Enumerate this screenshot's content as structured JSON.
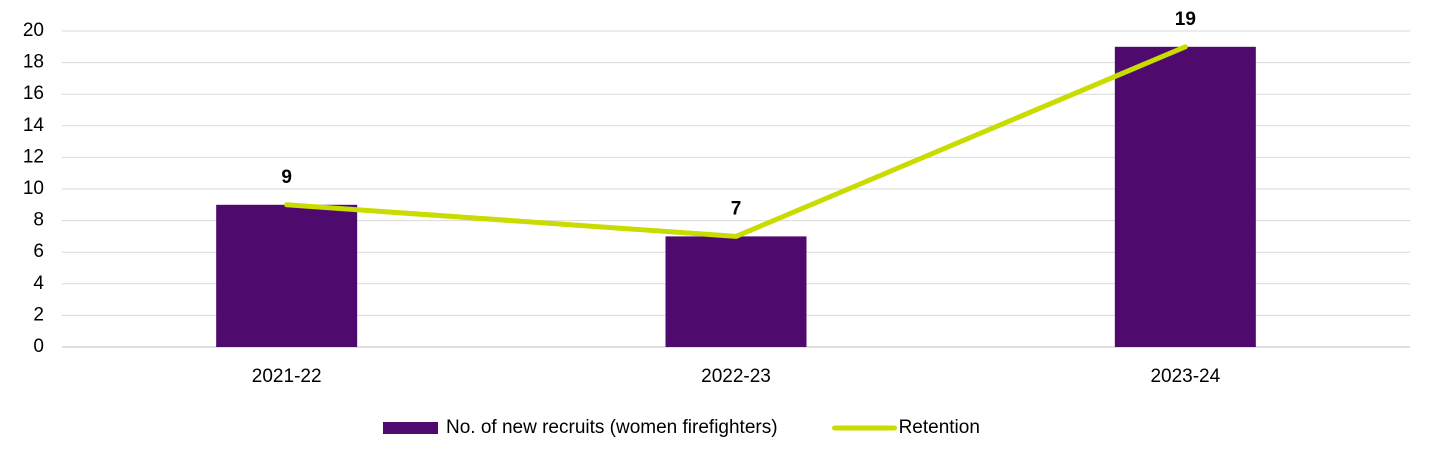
{
  "chart_data": {
    "type": "bar",
    "categories": [
      "2021-22",
      "2022-23",
      "2023-24"
    ],
    "series": [
      {
        "name": "No. of new recruits (women firefighters)",
        "color": "#4f0a6e",
        "values": [
          9,
          7,
          19
        ],
        "type": "bar"
      },
      {
        "name": "Retention",
        "color": "#c8dc00",
        "values": [
          9,
          7,
          19
        ],
        "type": "line"
      }
    ],
    "ylim": [
      0,
      20
    ],
    "yticks": [
      0,
      2,
      4,
      6,
      8,
      10,
      12,
      14,
      16,
      18,
      20
    ],
    "grid": true,
    "legend": "bottom"
  }
}
